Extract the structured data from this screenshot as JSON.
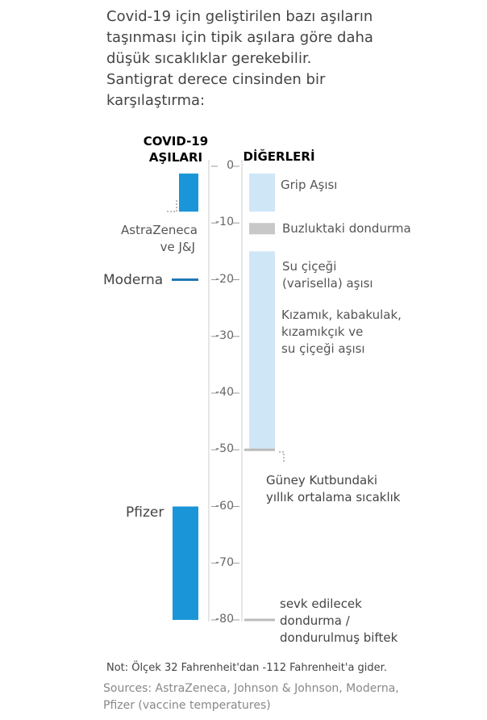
{
  "intro": [
    "Covid-19 için geliştirilen bazı aşıların",
    "taşınması için tipik aşılara göre daha",
    "düşük sıcaklıklar gerekebilir.",
    "Santigrat derece cinsinden bir",
    "karşılaştırma:"
  ],
  "headers": {
    "covid": [
      "COVID-19",
      "AŞILARI"
    ],
    "others": "DİĞERLERİ"
  },
  "colors": {
    "covid_bar": "#1a96d8",
    "moderna_line": "#1f77b4",
    "other_bar": "#cfe6f7",
    "freezer_bar": "#c8c8c8",
    "axis": "#e6e6e6"
  },
  "chart_data": {
    "type": "range-bar",
    "ylim": [
      -80,
      0
    ],
    "yticks": [
      0,
      -10,
      -20,
      -30,
      -40,
      -50,
      -60,
      -70,
      -80
    ],
    "unit": "°C",
    "covid_vaccines": [
      {
        "name": "AstraZeneca ve J&J",
        "from": 2,
        "to": 8
      },
      {
        "name": "Moderna",
        "from": -20,
        "to": -20
      },
      {
        "name": "Pfizer",
        "from": -80,
        "to": -60
      }
    ],
    "others": [
      {
        "name": "Grip Aşısı",
        "from": 2,
        "to": 8
      },
      {
        "name": "Buzluktaki dondurma",
        "from": -12,
        "to": -10
      },
      {
        "name": "Su çiçeği (varisella) aşısı / Kızamık, kabakulak, kızamıkçık ve su çiçeği aşısı",
        "from": -50,
        "to": -15
      },
      {
        "name": "Güney Kutbundaki yıllık ortalama sıcaklık",
        "from": -50,
        "to": -50
      },
      {
        "name": "sevk edilecek dondurma / dondurulmuş biftek",
        "from": -80,
        "to": -80
      }
    ]
  },
  "labels": {
    "astrazeneca": [
      "AstraZeneca",
      "ve J&J"
    ],
    "moderna": "Moderna",
    "pfizer": "Pfizer",
    "grip": "Grip Aşısı",
    "freezer": "Buzluktaki dondurma",
    "varicella": [
      "Su çiçeği",
      "(varisella) aşısı"
    ],
    "mmr": [
      "Kızamık, kabakulak,",
      "kızamıkçık ve",
      "su çiçeği aşısı"
    ],
    "southpole": [
      "Güney Kutbundaki",
      "yıllık ortalama sıcaklık"
    ],
    "icecream": [
      "sevk edilecek",
      "dondurma /",
      "dondurulmuş biftek"
    ]
  },
  "note": "Not: Ölçek 32 Fahrenheit'dan -112 Fahrenheit'a gider.",
  "sources": [
    "Sources: AstraZeneca, Johnson & Johnson, Moderna,",
    "Pfizer (vaccine temperatures)"
  ]
}
